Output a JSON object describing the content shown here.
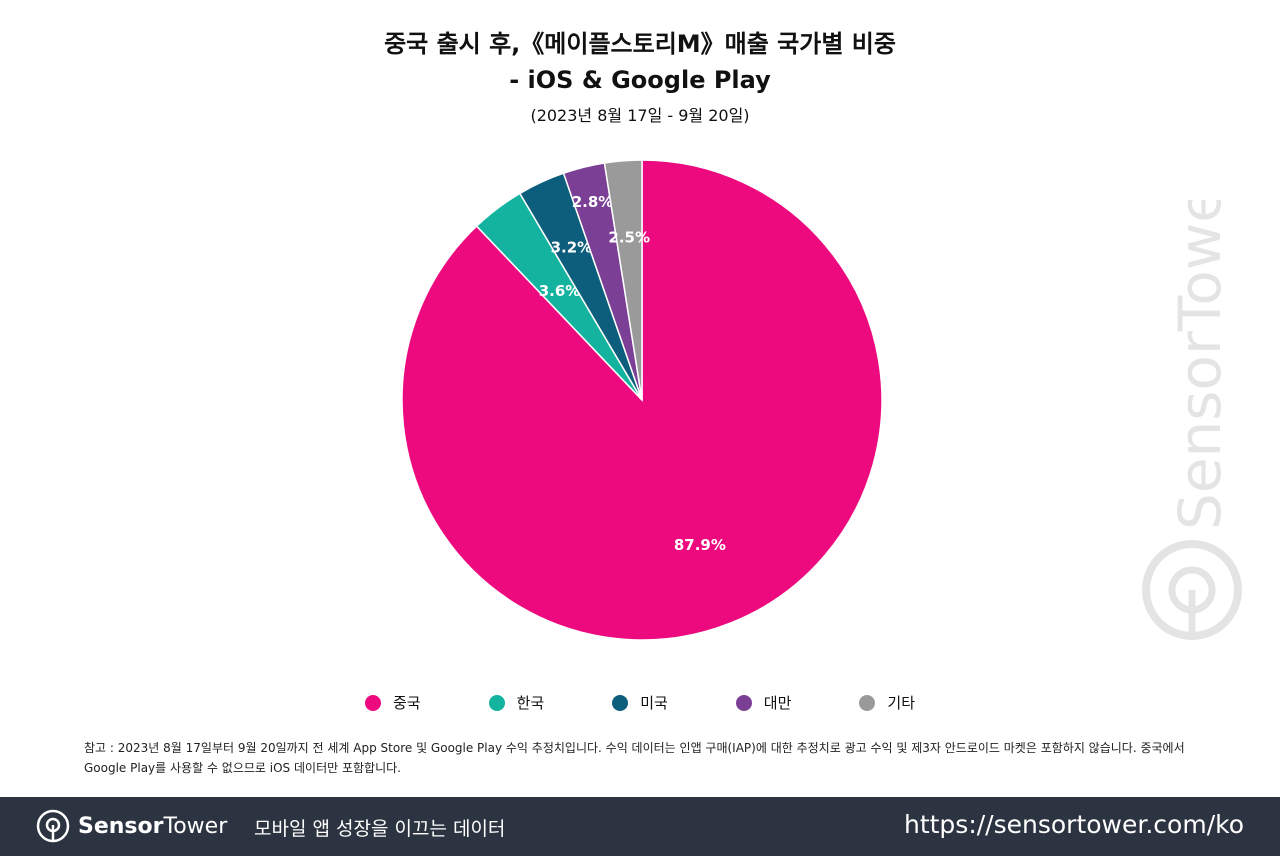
{
  "chart_data": {
    "type": "pie",
    "title_line1": "중국 출시 후,《메이플스토리M》매출 국가별 비중",
    "title_line2": "- iOS & Google Play",
    "subtitle": "(2023년 8월 17일 - 9월 20일)",
    "slices": [
      {
        "name": "중국",
        "value": 87.9,
        "label": "87.9%",
        "color": "#ec0a7e"
      },
      {
        "name": "한국",
        "value": 3.6,
        "label": "3.6%",
        "color": "#13b3a0"
      },
      {
        "name": "미국",
        "value": 3.2,
        "label": "3.2%",
        "color": "#0d5e7c"
      },
      {
        "name": "대만",
        "value": 2.8,
        "label": "2.8%",
        "color": "#7b3f96"
      },
      {
        "name": "기타",
        "value": 2.5,
        "label": "2.5%",
        "color": "#9a9a9a"
      }
    ],
    "legend_placement": "bottom",
    "start": "top, clockwise"
  },
  "note": "참고 : 2023년 8월 17일부터 9월 20일까지 전 세계 App Store 및 Google Play 수익 추정치입니다. 수익 데이터는 인앱 구매(IAP)에 대한 추정치로 광고 수익 및 제3자 안드로이드 마켓은 포함하지 않습니다. 중국에서 Google Play를 사용할 수 없으므로 iOS 데이터만 포함합니다.",
  "watermark": "SensorTower",
  "footer": {
    "logo_bold": "Sensor",
    "logo_light": "Tower",
    "tagline": "모바일 앱 성장을 이끄는 데이터",
    "url": "https://sensortower.com/ko"
  }
}
